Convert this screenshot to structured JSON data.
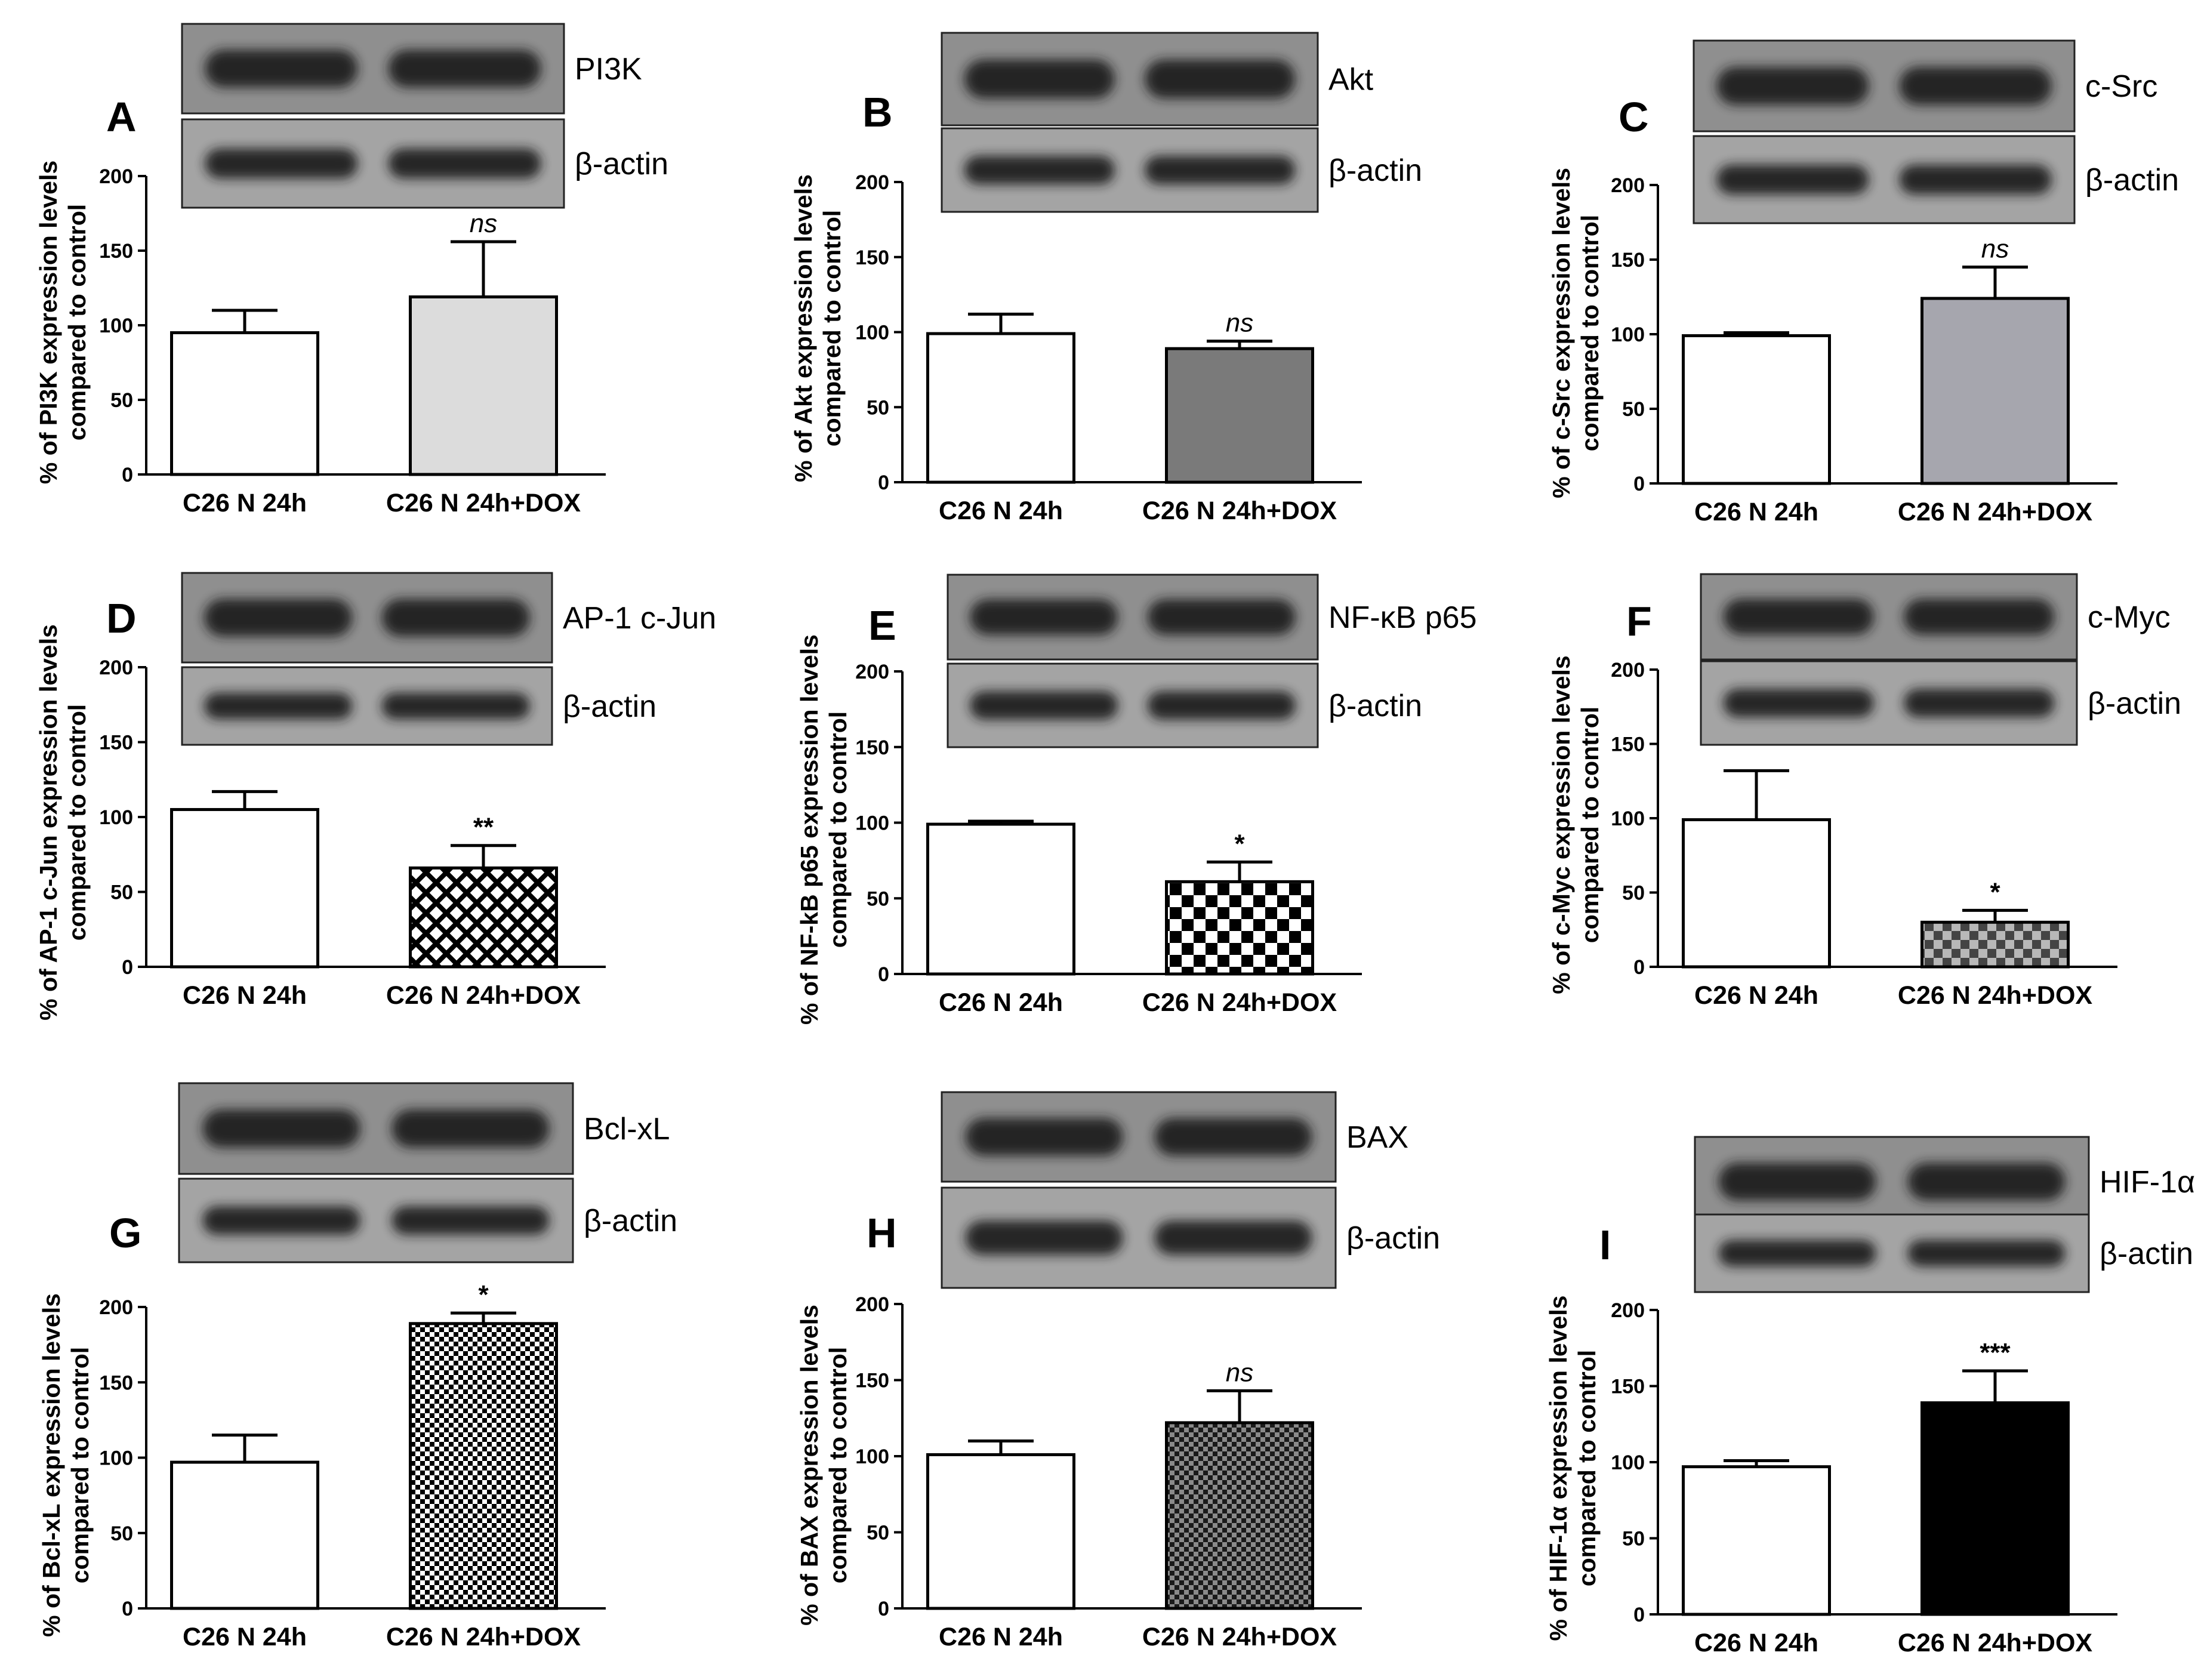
{
  "chart_data": [
    {
      "type": "bar",
      "panel": "A",
      "blot_target": "PI3K",
      "blot_control": "β-actin",
      "ylabel": [
        "% of PI3K expression levels",
        "compared to control"
      ],
      "categories": [
        "C26 N 24h",
        "C26 N 24h+DOX"
      ],
      "values": [
        95,
        119
      ],
      "errors": [
        15,
        37
      ],
      "significance": [
        "",
        "ns"
      ],
      "ylim": [
        0,
        200
      ],
      "yticks": [
        "0",
        "50",
        "100",
        "150",
        "200"
      ],
      "bar_fills": [
        "#ffffff",
        "#dcdcdc"
      ],
      "bar_patterns": [
        "solid",
        "solid"
      ]
    },
    {
      "type": "bar",
      "panel": "B",
      "blot_target": "Akt",
      "blot_control": "β-actin",
      "ylabel": [
        "% of Akt expression levels",
        "compared to control"
      ],
      "categories": [
        "C26 N 24h",
        "C26 N 24h+DOX"
      ],
      "values": [
        99,
        89
      ],
      "errors": [
        13,
        5
      ],
      "significance": [
        "",
        "ns"
      ],
      "ylim": [
        0,
        200
      ],
      "yticks": [
        "0",
        "50",
        "100",
        "150",
        "200"
      ],
      "bar_fills": [
        "#ffffff",
        "#7a7a7a"
      ],
      "bar_patterns": [
        "solid",
        "solid"
      ]
    },
    {
      "type": "bar",
      "panel": "C",
      "blot_target": "c-Src",
      "blot_control": "β-actin",
      "ylabel": [
        "% of c-Src expression levels",
        "compared to control"
      ],
      "categories": [
        "C26 N 24h",
        "C26 N 24h+DOX"
      ],
      "values": [
        99,
        124
      ],
      "errors": [
        2,
        21
      ],
      "significance": [
        "",
        "ns"
      ],
      "ylim": [
        0,
        200
      ],
      "yticks": [
        "0",
        "50",
        "100",
        "150",
        "200"
      ],
      "bar_fills": [
        "#ffffff",
        "#a6a6ae"
      ],
      "bar_patterns": [
        "solid",
        "solid"
      ]
    },
    {
      "type": "bar",
      "panel": "D",
      "blot_target": "AP-1 c-Jun",
      "blot_control": "β-actin",
      "ylabel": [
        "% of AP-1 c-Jun expression levels",
        "compared to control"
      ],
      "categories": [
        "C26 N 24h",
        "C26 N 24h+DOX"
      ],
      "values": [
        105,
        66
      ],
      "errors": [
        12,
        15
      ],
      "significance": [
        "",
        "**"
      ],
      "ylim": [
        0,
        200
      ],
      "yticks": [
        "0",
        "50",
        "100",
        "150",
        "200"
      ],
      "bar_fills": [
        "#ffffff",
        "#000000"
      ],
      "bar_patterns": [
        "solid",
        "crosshatch"
      ]
    },
    {
      "type": "bar",
      "panel": "E",
      "blot_target": "NF-κB p65",
      "blot_control": "β-actin",
      "ylabel": [
        "% of NF-kB p65 expression levels",
        "compared to control"
      ],
      "categories": [
        "C26 N 24h",
        "C26 N 24h+DOX"
      ],
      "values": [
        99,
        61
      ],
      "errors": [
        2,
        13
      ],
      "significance": [
        "",
        "*"
      ],
      "ylim": [
        0,
        200
      ],
      "yticks": [
        "0",
        "50",
        "100",
        "150",
        "200"
      ],
      "bar_fills": [
        "#ffffff",
        "#000000"
      ],
      "bar_patterns": [
        "solid",
        "checker-large"
      ]
    },
    {
      "type": "bar",
      "panel": "F",
      "blot_target": "c-Myc",
      "blot_control": "β-actin",
      "ylabel": [
        "% of c-Myc expression levels",
        "compared to control"
      ],
      "categories": [
        "C26 N 24h",
        "C26 N 24h+DOX"
      ],
      "values": [
        99,
        30
      ],
      "errors": [
        33,
        8
      ],
      "significance": [
        "",
        "*"
      ],
      "ylim": [
        0,
        200
      ],
      "yticks": [
        "0",
        "50",
        "100",
        "150",
        "200"
      ],
      "bar_fills": [
        "#ffffff",
        "#777777"
      ],
      "bar_patterns": [
        "solid",
        "checker-gray"
      ]
    },
    {
      "type": "bar",
      "panel": "G",
      "blot_target": "Bcl-xL",
      "blot_control": "β-actin",
      "ylabel": [
        "% of Bcl-xL expression levels",
        "compared to control"
      ],
      "categories": [
        "C26 N 24h",
        "C26 N 24h+DOX"
      ],
      "values": [
        97,
        189
      ],
      "errors": [
        18,
        7
      ],
      "significance": [
        "",
        "*"
      ],
      "ylim": [
        0,
        200
      ],
      "yticks": [
        "0",
        "50",
        "100",
        "150",
        "200"
      ],
      "bar_fills": [
        "#ffffff",
        "#000000"
      ],
      "bar_patterns": [
        "solid",
        "checker-small"
      ]
    },
    {
      "type": "bar",
      "panel": "H",
      "blot_target": "BAX",
      "blot_control": "β-actin",
      "ylabel": [
        "% of BAX expression levels",
        "compared to control"
      ],
      "categories": [
        "C26 N 24h",
        "C26 N 24h+DOX"
      ],
      "values": [
        101,
        122
      ],
      "errors": [
        9,
        21
      ],
      "significance": [
        "",
        "ns"
      ],
      "ylim": [
        0,
        200
      ],
      "yticks": [
        "0",
        "50",
        "100",
        "150",
        "200"
      ],
      "bar_fills": [
        "#ffffff",
        "#3a3a3a"
      ],
      "bar_patterns": [
        "solid",
        "checker-dark"
      ]
    },
    {
      "type": "bar",
      "panel": "I",
      "blot_target": "HIF-1α",
      "blot_control": "β-actin",
      "ylabel": [
        "% of HIF-1α expression levels",
        "compared to control"
      ],
      "categories": [
        "C26 N 24h",
        "C26 N 24h+DOX"
      ],
      "values": [
        97,
        139
      ],
      "errors": [
        4,
        21
      ],
      "significance": [
        "",
        "***"
      ],
      "ylim": [
        0,
        200
      ],
      "yticks": [
        "0",
        "50",
        "100",
        "150",
        "200"
      ],
      "bar_fills": [
        "#ffffff",
        "#000000"
      ],
      "bar_patterns": [
        "solid",
        "solid"
      ]
    }
  ]
}
